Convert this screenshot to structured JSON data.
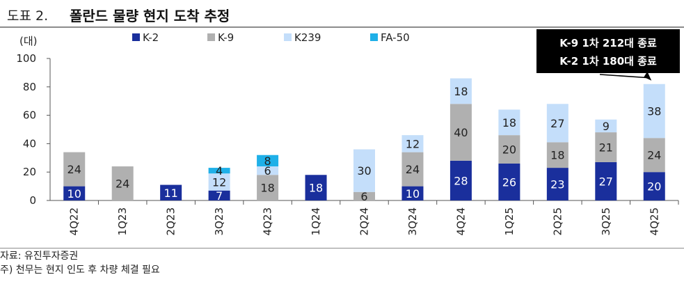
{
  "header": {
    "figure_number": "도표 2.",
    "title": "폴란드 물량 현지 도착 추정"
  },
  "footnotes": {
    "source": "자료: 유진투자증권",
    "note": "주) 천무는 현지 인도 후 차량 체결 필요"
  },
  "colors": {
    "K-2": "#1a2f9c",
    "K-9": "#b0b0b0",
    "K239": "#c4defa",
    "FA-50": "#1fb0e8"
  },
  "chart_data": {
    "type": "bar",
    "stacked": true,
    "title": "폴란드 물량 현지 도착 추정",
    "ylabel": "(대)",
    "xlabel": "",
    "ylim": [
      0,
      100
    ],
    "yticks": [
      0,
      20,
      40,
      60,
      80,
      100
    ],
    "grid": false,
    "legend_position": "top",
    "categories": [
      "4Q22",
      "1Q23",
      "2Q23",
      "3Q23",
      "4Q23",
      "1Q24",
      "2Q24",
      "3Q24",
      "4Q24",
      "1Q25",
      "2Q25",
      "3Q25",
      "4Q25"
    ],
    "series": [
      {
        "name": "K-2",
        "values": [
          10,
          0,
          11,
          7,
          0,
          18,
          0,
          10,
          28,
          26,
          23,
          27,
          20
        ]
      },
      {
        "name": "K-9",
        "values": [
          24,
          24,
          0,
          0,
          18,
          0,
          6,
          24,
          40,
          20,
          18,
          21,
          24
        ]
      },
      {
        "name": "K239",
        "values": [
          0,
          0,
          0,
          12,
          6,
          0,
          30,
          12,
          18,
          18,
          27,
          9,
          38
        ]
      },
      {
        "name": "FA-50",
        "values": [
          0,
          0,
          0,
          4,
          8,
          0,
          0,
          0,
          0,
          0,
          0,
          0,
          0
        ]
      }
    ],
    "annotation": {
      "lines": [
        "K-9 1차 212대 종료",
        "K-2 1차 180대 종료"
      ],
      "target_category": "4Q25"
    }
  }
}
